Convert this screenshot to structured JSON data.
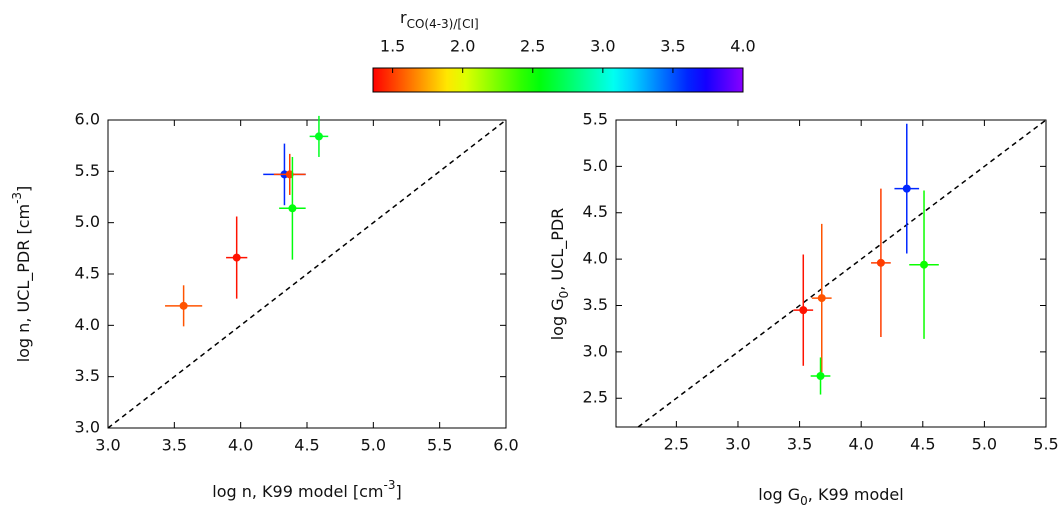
{
  "colorbar": {
    "label": [
      "r",
      "CO(4-3)/[CI]"
    ],
    "label_script": "sub",
    "cmap": "rainbow",
    "lim": [
      1.36,
      4.0
    ],
    "ticks": [
      1.5,
      {
        "value": 2,
        "label": "2.0"
      },
      2.5,
      {
        "value": 3,
        "label": "3.0"
      },
      3.5,
      {
        "value": 4,
        "label": "4.0"
      }
    ]
  },
  "chart_data": [
    {
      "type": "scatter",
      "xlabel": [
        "log n, K99 model   [cm",
        "-3",
        "]"
      ],
      "xlabel_script": "super",
      "ylabel": [
        "log n, UCL_PDR   [cm",
        "-3",
        "]"
      ],
      "ylabel_script": "super",
      "x": [
        3.57,
        3.97,
        4.33,
        4.37,
        4.39,
        4.59
      ],
      "y": [
        4.19,
        4.66,
        5.47,
        5.47,
        5.14,
        5.84
      ],
      "xerr": [
        0.14,
        0.08,
        0.16,
        0.12,
        0.1,
        0.07
      ],
      "yerr": [
        0.2,
        0.4,
        0.3,
        0.2,
        0.5,
        0.2
      ],
      "c": [
        1.55,
        1.4,
        3.6,
        1.5,
        2.55,
        2.6
      ],
      "xlim": [
        3.0,
        6.0
      ],
      "ylim": [
        3.0,
        6.0
      ],
      "xticks": [
        {
          "value": 3,
          "label": "3.0"
        },
        3.5,
        {
          "value": 4,
          "label": "4.0"
        },
        4.5,
        {
          "value": 5,
          "label": "5.0"
        },
        5.5,
        {
          "value": 6,
          "label": "6.0"
        }
      ],
      "yticks": [
        {
          "value": 3,
          "label": "3.0"
        },
        3.5,
        {
          "value": 4,
          "label": "4.0"
        },
        4.5,
        {
          "value": 5,
          "label": "5.0"
        },
        5.5,
        {
          "value": 6,
          "label": "6.0"
        }
      ],
      "diagonal": true
    },
    {
      "type": "scatter",
      "xlabel": [
        "log G",
        "0",
        ", K99 model"
      ],
      "xlabel_script": "sub",
      "ylabel": [
        "log G",
        "0",
        ", UCL_PDR"
      ],
      "ylabel_script": "sub",
      "x": [
        3.53,
        3.68,
        3.67,
        4.16,
        4.37,
        4.51
      ],
      "y": [
        3.45,
        3.58,
        2.74,
        3.96,
        4.76,
        3.94
      ],
      "xerr": [
        0.08,
        0.08,
        0.08,
        0.08,
        0.1,
        0.12
      ],
      "yerr": [
        0.6,
        0.8,
        0.2,
        0.8,
        0.7,
        0.8
      ],
      "c": [
        1.4,
        1.55,
        2.55,
        1.5,
        3.6,
        2.5
      ],
      "xlim": [
        2.01,
        5.5
      ],
      "ylim": [
        2.19,
        5.5
      ],
      "xticks": [
        2.5,
        {
          "value": 3,
          "label": "3.0"
        },
        3.5,
        {
          "value": 4,
          "label": "4.0"
        },
        4.5,
        {
          "value": 5,
          "label": "5.0"
        },
        5.5
      ],
      "yticks": [
        2.5,
        {
          "value": 3,
          "label": "3.0"
        },
        3.5,
        {
          "value": 4,
          "label": "4.0"
        },
        4.5,
        {
          "value": 5,
          "label": "5.0"
        },
        5.5
      ],
      "diagonal": true
    }
  ]
}
